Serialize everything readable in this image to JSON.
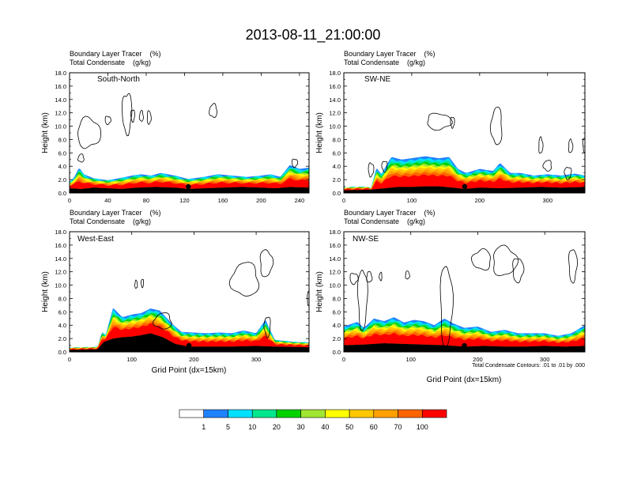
{
  "figure": {
    "title": "2013-08-11_21:00:00",
    "contour_note": "Total Condensate Contours: .01 to .01 by .000",
    "colors": {
      "background": "#ffffff",
      "ground": "#000000",
      "contour": "#000000"
    }
  },
  "colorbar": {
    "labels": [
      "1",
      "5",
      "10",
      "20",
      "30",
      "40",
      "50",
      "60",
      "70",
      "100"
    ],
    "colors": [
      "#ffffff",
      "#1e82ff",
      "#00e0ff",
      "#00e68c",
      "#00d200",
      "#a0e632",
      "#ffff00",
      "#ffc800",
      "#ffa000",
      "#ff6400",
      "#ff0000"
    ]
  },
  "chart_data": [
    {
      "type": "contour",
      "name": "South-North",
      "header_line1": "Boundary Layer Tracer    (%)",
      "header_line2": "Total Condensate    (g/kg)",
      "ylabel": "Height (km)",
      "xlabel": "",
      "x_ticks": [
        0,
        40,
        80,
        120,
        160,
        200,
        240
      ],
      "xlim": [
        0,
        250
      ],
      "y_ticks": [
        "0.0",
        "2.0",
        "4.0",
        "6.0",
        "8.0",
        "10.0",
        "12.0",
        "14.0",
        "16.0",
        "18.0"
      ],
      "ylim": [
        0,
        18
      ],
      "marker_x": 124,
      "ground": [
        [
          0,
          0.7
        ],
        [
          12,
          0.6
        ],
        [
          25,
          0.8
        ],
        [
          40,
          0.7
        ],
        [
          55,
          0.6
        ],
        [
          70,
          0.8
        ],
        [
          90,
          0.9
        ],
        [
          110,
          0.8
        ],
        [
          124,
          0.6
        ],
        [
          140,
          0.7
        ],
        [
          160,
          0.8
        ],
        [
          180,
          0.9
        ],
        [
          200,
          0.8
        ],
        [
          215,
          0.7
        ],
        [
          230,
          0.9
        ],
        [
          250,
          0.8
        ]
      ],
      "tracer_top": [
        [
          0,
          1.6
        ],
        [
          5,
          2.4
        ],
        [
          10,
          3.8
        ],
        [
          15,
          2.8
        ],
        [
          25,
          2.2
        ],
        [
          40,
          1.9
        ],
        [
          55,
          2.3
        ],
        [
          65,
          2.6
        ],
        [
          75,
          2.8
        ],
        [
          85,
          2.6
        ],
        [
          95,
          3.0
        ],
        [
          110,
          2.6
        ],
        [
          124,
          2.1
        ],
        [
          140,
          2.4
        ],
        [
          155,
          2.8
        ],
        [
          170,
          2.6
        ],
        [
          185,
          2.4
        ],
        [
          200,
          2.6
        ],
        [
          210,
          2.8
        ],
        [
          220,
          2.4
        ],
        [
          230,
          4.2
        ],
        [
          240,
          3.6
        ],
        [
          250,
          3.8
        ]
      ],
      "clouds": [
        [
          20,
          9.0,
          12,
          2.2
        ],
        [
          60,
          12.0,
          5,
          3.0
        ],
        [
          66,
          11.6,
          2,
          0.9
        ],
        [
          75,
          11.5,
          2,
          0.8
        ],
        [
          83,
          11.3,
          2,
          1.0
        ],
        [
          150,
          12.3,
          4,
          1.0
        ],
        [
          40,
          10.9,
          3,
          0.6
        ],
        [
          12,
          5.2,
          3,
          0.6
        ],
        [
          235,
          4.5,
          3,
          0.6
        ]
      ]
    },
    {
      "type": "contour",
      "name": "SW-NE",
      "header_line1": "Boundary Layer Tracer    (%)",
      "header_line2": "Total Condensate    (g/kg)",
      "ylabel": "Height (km)",
      "xlabel": "",
      "x_ticks": [
        0,
        100,
        200,
        300
      ],
      "xlim": [
        0,
        355
      ],
      "y_ticks": [
        "0.0",
        "2.0",
        "4.0",
        "6.0",
        "8.0",
        "10.0",
        "12.0",
        "14.0",
        "16.0",
        "18.0"
      ],
      "ylim": [
        0,
        18
      ],
      "marker_x": 178,
      "ground": [
        [
          0,
          0.4
        ],
        [
          40,
          0.5
        ],
        [
          60,
          0.7
        ],
        [
          80,
          0.9
        ],
        [
          100,
          0.9
        ],
        [
          120,
          1.0
        ],
        [
          140,
          1.0
        ],
        [
          160,
          0.8
        ],
        [
          178,
          0.6
        ],
        [
          200,
          0.8
        ],
        [
          230,
          0.7
        ],
        [
          260,
          0.8
        ],
        [
          290,
          0.9
        ],
        [
          320,
          0.8
        ],
        [
          355,
          0.9
        ]
      ],
      "tracer_top": [
        [
          0,
          0.8
        ],
        [
          20,
          0.9
        ],
        [
          35,
          0.9
        ],
        [
          40,
          0.6
        ],
        [
          48,
          3.8
        ],
        [
          55,
          2.8
        ],
        [
          70,
          5.4
        ],
        [
          85,
          5.0
        ],
        [
          100,
          5.2
        ],
        [
          120,
          5.5
        ],
        [
          140,
          5.2
        ],
        [
          155,
          5.4
        ],
        [
          168,
          3.6
        ],
        [
          180,
          3.0
        ],
        [
          200,
          3.6
        ],
        [
          220,
          3.3
        ],
        [
          230,
          4.5
        ],
        [
          245,
          3.0
        ],
        [
          260,
          3.0
        ],
        [
          280,
          2.6
        ],
        [
          300,
          2.8
        ],
        [
          320,
          2.6
        ],
        [
          340,
          2.9
        ],
        [
          355,
          2.6
        ]
      ],
      "clouds": [
        [
          140,
          10.7,
          18,
          1.2
        ],
        [
          160,
          10.6,
          3,
          0.8
        ],
        [
          225,
          10.0,
          8,
          2.8
        ],
        [
          290,
          7.1,
          3,
          1.2
        ],
        [
          334,
          7.0,
          3,
          1.0
        ],
        [
          355,
          7.2,
          3,
          1.2
        ],
        [
          40,
          3.5,
          4,
          1.0
        ],
        [
          60,
          4.0,
          4,
          0.8
        ],
        [
          300,
          4.1,
          6,
          0.8
        ],
        [
          330,
          3.0,
          5,
          0.9
        ]
      ]
    },
    {
      "type": "contour",
      "name": "West-East",
      "header_line1": "Boundary Layer Tracer    (%)",
      "header_line2": "Total Condensate    (g/kg)",
      "ylabel": "Height (km)",
      "xlabel": "Grid Point (dx=15km)",
      "x_ticks": [
        0,
        100,
        200,
        300
      ],
      "xlim": [
        0,
        385
      ],
      "y_ticks": [
        "0.0",
        "2.0",
        "4.0",
        "6.0",
        "8.0",
        "10.0",
        "12.0",
        "14.0",
        "16.0",
        "18.0"
      ],
      "ylim": [
        0,
        18
      ],
      "marker_x": 192,
      "ground": [
        [
          0,
          0.3
        ],
        [
          45,
          0.4
        ],
        [
          55,
          1.5
        ],
        [
          70,
          2.0
        ],
        [
          85,
          2.2
        ],
        [
          100,
          2.3
        ],
        [
          115,
          2.5
        ],
        [
          130,
          2.8
        ],
        [
          150,
          2.2
        ],
        [
          170,
          1.2
        ],
        [
          192,
          0.8
        ],
        [
          220,
          0.8
        ],
        [
          260,
          0.8
        ],
        [
          300,
          0.9
        ],
        [
          330,
          0.8
        ],
        [
          385,
          0.7
        ]
      ],
      "tracer_top": [
        [
          0,
          0.6
        ],
        [
          45,
          0.7
        ],
        [
          52,
          3.0
        ],
        [
          58,
          2.5
        ],
        [
          70,
          6.6
        ],
        [
          85,
          5.2
        ],
        [
          100,
          5.6
        ],
        [
          115,
          5.8
        ],
        [
          130,
          6.5
        ],
        [
          145,
          6.2
        ],
        [
          165,
          4.2
        ],
        [
          180,
          3.0
        ],
        [
          200,
          2.9
        ],
        [
          220,
          2.8
        ],
        [
          240,
          2.9
        ],
        [
          260,
          2.8
        ],
        [
          280,
          3.2
        ],
        [
          300,
          2.8
        ],
        [
          315,
          4.8
        ],
        [
          330,
          1.8
        ],
        [
          360,
          1.5
        ],
        [
          385,
          1.4
        ]
      ],
      "clouds": [
        [
          282,
          10.8,
          22,
          2.5
        ],
        [
          316,
          13.3,
          10,
          2.0
        ],
        [
          107,
          10.1,
          2,
          0.6
        ],
        [
          117,
          10.3,
          2,
          0.6
        ],
        [
          150,
          4.6,
          14,
          1.2
        ],
        [
          318,
          3.8,
          5,
          1.5
        ],
        [
          385,
          8.0,
          3,
          1.0
        ]
      ]
    },
    {
      "type": "contour",
      "name": "NW-SE",
      "header_line1": "Boundary Layer Tracer    (%)",
      "header_line2": "Total Condensate    (g/kg)",
      "ylabel": "Height (km)",
      "xlabel": "Grid Point (dx=15km)",
      "x_ticks": [
        0,
        100,
        200,
        300
      ],
      "xlim": [
        0,
        360
      ],
      "y_ticks": [
        "0.0",
        "2.0",
        "4.0",
        "6.0",
        "8.0",
        "10.0",
        "12.0",
        "14.0",
        "16.0",
        "18.0"
      ],
      "ylim": [
        0,
        18
      ],
      "marker_x": 180,
      "ground": [
        [
          0,
          1.0
        ],
        [
          30,
          1.1
        ],
        [
          60,
          1.3
        ],
        [
          90,
          1.2
        ],
        [
          120,
          1.1
        ],
        [
          150,
          1.0
        ],
        [
          180,
          0.8
        ],
        [
          210,
          0.9
        ],
        [
          240,
          0.8
        ],
        [
          270,
          0.8
        ],
        [
          300,
          0.9
        ],
        [
          330,
          0.8
        ],
        [
          360,
          0.9
        ]
      ],
      "tracer_top": [
        [
          0,
          3.8
        ],
        [
          20,
          4.5
        ],
        [
          30,
          3.6
        ],
        [
          45,
          5.0
        ],
        [
          60,
          4.6
        ],
        [
          75,
          5.2
        ],
        [
          90,
          4.4
        ],
        [
          105,
          4.8
        ],
        [
          120,
          4.6
        ],
        [
          135,
          4.0
        ],
        [
          150,
          5.0
        ],
        [
          165,
          4.2
        ],
        [
          180,
          3.6
        ],
        [
          200,
          3.8
        ],
        [
          220,
          3.0
        ],
        [
          240,
          3.3
        ],
        [
          260,
          2.8
        ],
        [
          280,
          2.8
        ],
        [
          300,
          2.8
        ],
        [
          320,
          2.4
        ],
        [
          340,
          2.8
        ],
        [
          360,
          4.0
        ]
      ],
      "clouds": [
        [
          15,
          11.0,
          6,
          0.8
        ],
        [
          38,
          11.2,
          4,
          0.8
        ],
        [
          28,
          8.0,
          7,
          4.5
        ],
        [
          153,
          7.0,
          9,
          6.0
        ],
        [
          206,
          13.8,
          14,
          1.5
        ],
        [
          240,
          13.6,
          18,
          2.2
        ],
        [
          260,
          12.3,
          8,
          1.8
        ],
        [
          342,
          13.0,
          6,
          2.5
        ],
        [
          95,
          11.5,
          3,
          0.6
        ],
        [
          55,
          11.3,
          2,
          0.6
        ]
      ]
    }
  ]
}
